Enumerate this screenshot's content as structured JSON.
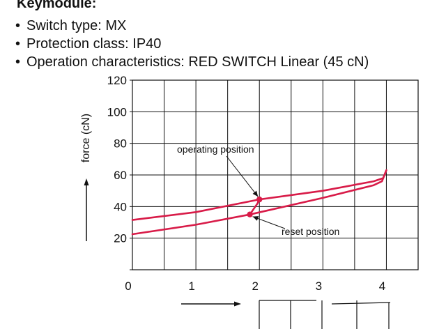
{
  "document": {
    "heading": "Keymodule:",
    "bullets": [
      "Switch type: MX",
      "Protection class: IP40",
      "Operation characteristics: RED SWITCH Linear (45 cN)"
    ]
  },
  "chart_data": {
    "type": "line",
    "title": "",
    "ylabel": "force (cN)",
    "xlabel": "",
    "xlim": [
      0,
      4.5
    ],
    "ylim": [
      0,
      120
    ],
    "xticks": [
      0,
      1,
      2,
      3,
      4
    ],
    "yticks": [
      20,
      40,
      60,
      80,
      100,
      120
    ],
    "grid": true,
    "line_color": "#d81b48",
    "series": [
      {
        "points": [
          [
            0,
            31.5
          ],
          [
            1,
            36.5
          ],
          [
            2,
            44.5
          ],
          [
            3,
            50
          ],
          [
            3.8,
            56
          ],
          [
            3.95,
            58
          ],
          [
            4,
            63
          ]
        ]
      },
      {
        "points": [
          [
            0,
            22.5
          ],
          [
            1,
            28.5
          ],
          [
            1.85,
            35
          ],
          [
            1.97,
            42
          ],
          [
            2,
            44.5
          ]
        ]
      },
      {
        "points": [
          [
            1.85,
            35
          ],
          [
            3,
            45.5
          ],
          [
            3.8,
            53.5
          ],
          [
            3.93,
            56
          ],
          [
            4,
            63
          ]
        ]
      }
    ],
    "markers": [
      {
        "x": 2,
        "y": 44.5
      },
      {
        "x": 1.85,
        "y": 35
      }
    ],
    "annotations": [
      {
        "text": "operating position",
        "x": 2,
        "y": 44.5
      },
      {
        "text": "reset position",
        "x": 1.85,
        "y": 35
      }
    ]
  }
}
